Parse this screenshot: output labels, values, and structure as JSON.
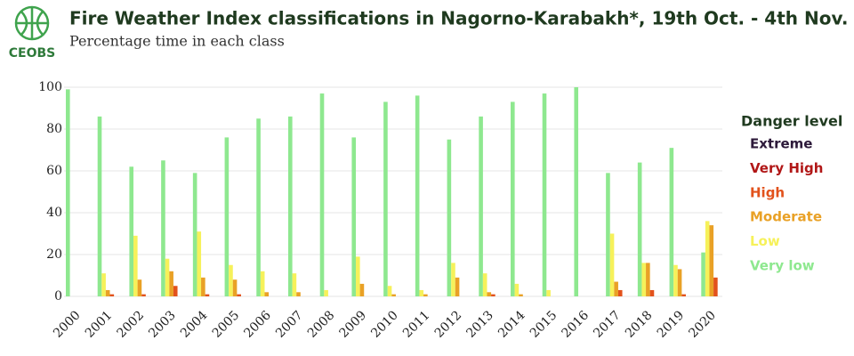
{
  "brand": "CEOBS",
  "chart_data": {
    "type": "bar",
    "title": "Fire Weather Index classifications in Nagorno-Karabakh*, 19th Oct. - 4th Nov.",
    "subtitle": "Percentage time in each class",
    "categories": [
      "2000",
      "2001",
      "2002",
      "2003",
      "2004",
      "2005",
      "2006",
      "2007",
      "2008",
      "2009",
      "2010",
      "2011",
      "2012",
      "2013",
      "2014",
      "2015",
      "2016",
      "2017",
      "2018",
      "2019",
      "2020"
    ],
    "series": [
      {
        "name": "Very low",
        "color": "#8ee88f",
        "values": [
          99,
          86,
          62,
          65,
          59,
          76,
          85,
          86,
          97,
          76,
          93,
          96,
          75,
          86,
          93,
          97,
          100,
          59,
          64,
          71,
          21
        ]
      },
      {
        "name": "Low",
        "color": "#f6f15a",
        "values": [
          0,
          11,
          29,
          18,
          31,
          15,
          12,
          11,
          3,
          19,
          5,
          3,
          16,
          11,
          6,
          3,
          0,
          30,
          16,
          15,
          36
        ]
      },
      {
        "name": "Moderate",
        "color": "#e9a126",
        "values": [
          0,
          3,
          8,
          12,
          9,
          8,
          2,
          2,
          0,
          6,
          1,
          1,
          9,
          2,
          1,
          0,
          0,
          7,
          16,
          13,
          34
        ]
      },
      {
        "name": "High",
        "color": "#e2521c",
        "values": [
          0,
          1,
          1,
          5,
          1,
          1,
          0,
          0,
          0,
          0,
          0,
          0,
          0,
          1,
          0,
          0,
          0,
          3,
          3,
          1,
          9
        ]
      },
      {
        "name": "Very High",
        "color": "#b11717",
        "values": [
          0,
          0,
          0,
          0,
          0,
          0,
          0,
          0,
          0,
          0,
          0,
          0,
          0,
          0,
          0,
          0,
          0,
          0,
          0,
          0,
          0
        ]
      },
      {
        "name": "Extreme",
        "color": "#2d1a3a",
        "values": [
          0,
          0,
          0,
          0,
          0,
          0,
          0,
          0,
          0,
          0,
          0,
          0,
          0,
          0,
          0,
          0,
          0,
          0,
          0,
          0,
          0
        ]
      }
    ],
    "legend_title": "Danger level",
    "ylim": [
      0,
      100
    ],
    "yticks": [
      0,
      20,
      40,
      60,
      80,
      100
    ],
    "grid": true
  }
}
